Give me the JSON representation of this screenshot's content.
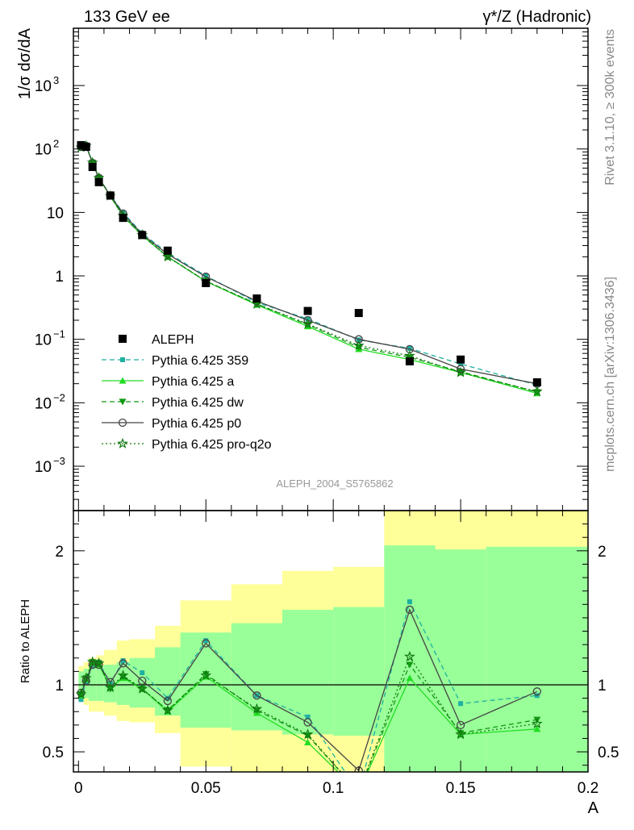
{
  "chart_data": [
    {
      "type": "scatter",
      "panel": "main",
      "title_left": "133 GeV ee",
      "title_right": "γ*/Z (Hadronic)",
      "ylabel": "1/σ  dσ/dA",
      "xlabel": "A",
      "ylog": true,
      "xlim": [
        -0.002,
        0.2
      ],
      "ylim": [
        0.0002,
        8000
      ],
      "y_ticks": [
        {
          "v": 0.001,
          "label": "10",
          "exp": "−3"
        },
        {
          "v": 0.01,
          "label": "10",
          "exp": "−2"
        },
        {
          "v": 0.1,
          "label": "10",
          "exp": "−1"
        },
        {
          "v": 1,
          "label": "1",
          "exp": ""
        },
        {
          "v": 10,
          "label": "10",
          "exp": ""
        },
        {
          "v": 100,
          "label": "10",
          "exp": "2"
        },
        {
          "v": 1000,
          "label": "10",
          "exp": "3"
        }
      ],
      "analysis_label": "ALEPH_2004_S5765862",
      "x": [
        0.001,
        0.003,
        0.0055,
        0.008,
        0.0125,
        0.0175,
        0.025,
        0.035,
        0.05,
        0.07,
        0.09,
        0.11,
        0.13,
        0.15,
        0.18
      ],
      "series": [
        {
          "name": "ALEPH",
          "color": "#000000",
          "style": "data",
          "values": [
            115,
            108,
            52,
            30,
            18.5,
            8.2,
            4.4,
            2.5,
            0.77,
            0.44,
            0.28,
            0.26,
            0.045,
            0.048,
            0.021
          ]
        },
        {
          "name": "Pythia 6.425 359",
          "color": "#20b0a0",
          "style": "dashed",
          "marker": "square",
          "values": [
            105,
            112,
            60,
            35,
            18.8,
            9.9,
            4.7,
            2.3,
            1.0,
            0.38,
            0.21,
            0.098,
            0.072,
            0.041,
            0.019
          ]
        },
        {
          "name": "Pythia 6.425 a",
          "color": "#22dd22",
          "style": "solid",
          "marker": "triangle-up",
          "values": [
            107,
            112,
            61,
            35,
            18.1,
            8.8,
            4.3,
            2.0,
            0.82,
            0.35,
            0.16,
            0.07,
            0.048,
            0.03,
            0.0141
          ]
        },
        {
          "name": "Pythia 6.425 dw",
          "color": "#119911",
          "style": "dashed",
          "marker": "triangle-down",
          "values": [
            107,
            113,
            61,
            35,
            18.0,
            8.7,
            4.3,
            2.0,
            0.83,
            0.36,
            0.17,
            0.075,
            0.052,
            0.031,
            0.0148
          ]
        },
        {
          "name": "Pythia 6.425 p0",
          "color": "#444444",
          "style": "solid",
          "marker": "circle-open",
          "values": [
            108,
            112,
            60,
            35,
            18.4,
            9.6,
            4.5,
            2.2,
            0.97,
            0.4,
            0.2,
            0.1,
            0.07,
            0.034,
            0.02
          ]
        },
        {
          "name": "Pythia 6.425 pro-q2o",
          "color": "#117711",
          "style": "dotted",
          "marker": "star-open",
          "values": [
            106,
            112,
            61,
            35,
            18.2,
            8.8,
            4.4,
            2.0,
            0.82,
            0.36,
            0.175,
            0.08,
            0.055,
            0.03,
            0.015
          ]
        }
      ],
      "legend_position": "bottom-left",
      "grid": false
    },
    {
      "type": "line",
      "panel": "ratio",
      "ylabel": "Ratio to ALEPH",
      "xlabel": "A",
      "xlim": [
        -0.002,
        0.2
      ],
      "ylim": [
        0.35,
        2.3
      ],
      "x_ticks": [
        0,
        0.05,
        0.1,
        0.15,
        0.2
      ],
      "x_tick_labels": [
        "0",
        "0.05",
        "0.1",
        "0.15",
        "0.2"
      ],
      "y_ticks": [
        0.5,
        1,
        2
      ],
      "y_tick_labels": [
        "0.5",
        "1",
        "2"
      ],
      "bands": [
        {
          "x0": 0,
          "x1": 0.002,
          "g": [
            0.92,
            1.1
          ],
          "y": [
            0.88,
            1.14
          ]
        },
        {
          "x0": 0.002,
          "x1": 0.004,
          "g": [
            0.9,
            1.12
          ],
          "y": [
            0.85,
            1.17
          ]
        },
        {
          "x0": 0.004,
          "x1": 0.007,
          "g": [
            0.88,
            1.14
          ],
          "y": [
            0.8,
            1.2
          ]
        },
        {
          "x0": 0.007,
          "x1": 0.01,
          "g": [
            0.88,
            1.14
          ],
          "y": [
            0.8,
            1.22
          ]
        },
        {
          "x0": 0.01,
          "x1": 0.015,
          "g": [
            0.87,
            1.15
          ],
          "y": [
            0.77,
            1.26
          ]
        },
        {
          "x0": 0.015,
          "x1": 0.02,
          "g": [
            0.85,
            1.17
          ],
          "y": [
            0.73,
            1.33
          ]
        },
        {
          "x0": 0.02,
          "x1": 0.03,
          "g": [
            0.83,
            1.2
          ],
          "y": [
            0.72,
            1.34
          ]
        },
        {
          "x0": 0.03,
          "x1": 0.04,
          "g": [
            0.77,
            1.28
          ],
          "y": [
            0.64,
            1.44
          ]
        },
        {
          "x0": 0.04,
          "x1": 0.06,
          "g": [
            0.68,
            1.39
          ],
          "y": [
            0.39,
            1.63
          ]
        },
        {
          "x0": 0.06,
          "x1": 0.08,
          "g": [
            0.66,
            1.46
          ],
          "y": [
            0.35,
            1.75
          ]
        },
        {
          "x0": 0.08,
          "x1": 0.1,
          "g": [
            0.63,
            1.56
          ],
          "y": [
            0.35,
            1.85
          ]
        },
        {
          "x0": 0.1,
          "x1": 0.12,
          "g": [
            0.62,
            1.58
          ],
          "y": [
            0.35,
            1.88
          ]
        },
        {
          "x0": 0.12,
          "x1": 0.14,
          "g": [
            0.35,
            2.04
          ],
          "y": [
            0.35,
            2.3
          ]
        },
        {
          "x0": 0.14,
          "x1": 0.16,
          "g": [
            0.35,
            2.01
          ],
          "y": [
            0.35,
            2.3
          ]
        },
        {
          "x0": 0.16,
          "x1": 0.2,
          "g": [
            0.35,
            2.03
          ],
          "y": [
            0.35,
            2.3
          ]
        }
      ],
      "series": [
        {
          "name": "Pythia 6.425 359",
          "color": "#20b0a0",
          "style": "dashed",
          "marker": "square",
          "values": [
            0.89,
            1.02,
            1.14,
            1.17,
            1.01,
            1.18,
            1.09,
            0.9,
            1.33,
            0.92,
            0.76,
            0.2,
            1.62,
            0.86,
            0.92
          ]
        },
        {
          "name": "Pythia 6.425 a",
          "color": "#22dd22",
          "style": "solid",
          "marker": "triangle-up",
          "values": [
            0.92,
            1.04,
            1.16,
            1.15,
            0.98,
            1.05,
            0.97,
            0.8,
            1.06,
            0.79,
            0.57,
            0.2,
            1.05,
            0.63,
            0.67
          ]
        },
        {
          "name": "Pythia 6.425 dw",
          "color": "#119911",
          "style": "dashed",
          "marker": "triangle-down",
          "values": [
            0.93,
            1.05,
            1.17,
            1.16,
            0.97,
            1.06,
            0.97,
            0.81,
            1.08,
            0.81,
            0.62,
            0.2,
            1.15,
            0.64,
            0.74
          ]
        },
        {
          "name": "Pythia 6.425 p0",
          "color": "#444444",
          "style": "solid",
          "marker": "circle-open",
          "values": [
            0.94,
            1.03,
            1.15,
            1.15,
            1.02,
            1.16,
            1.03,
            0.88,
            1.31,
            0.92,
            0.72,
            0.36,
            1.56,
            0.7,
            0.95
          ]
        },
        {
          "name": "Pythia 6.425 pro-q2o",
          "color": "#117711",
          "style": "dotted",
          "marker": "star-open",
          "values": [
            0.93,
            1.05,
            1.17,
            1.16,
            0.98,
            1.07,
            0.97,
            0.81,
            1.07,
            0.82,
            0.63,
            0.2,
            1.21,
            0.63,
            0.71
          ]
        }
      ]
    }
  ],
  "side_labels": {
    "top": "Rivet 3.1.10, ≥ 300k events",
    "bottom": "mcplots.cern.ch [arXiv:1306.3436]"
  },
  "colors": {
    "band_inner": "#99ff99",
    "band_outer": "#ffff99"
  }
}
